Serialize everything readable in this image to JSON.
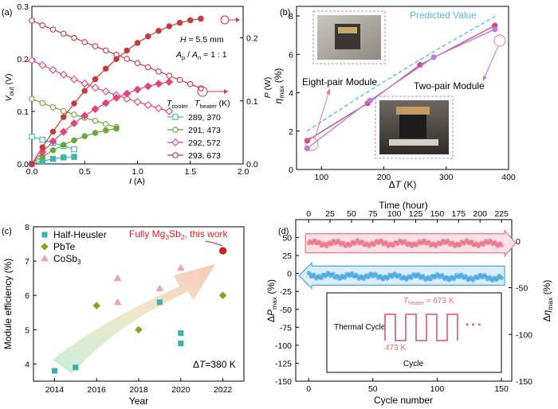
{
  "chart_data": [
    {
      "type": "line",
      "panel": "(a)",
      "xlabel": "I (A)",
      "ylabel": "V_out (V)",
      "y2label": "P (W)",
      "xlim": [
        0,
        2.0
      ],
      "ylim": [
        0,
        0.3
      ],
      "y2lim": [
        0,
        0.25
      ],
      "xticks": [
        "0.0",
        "0.5",
        "1.0",
        "1.5",
        "2.0"
      ],
      "yticks": [
        "0.0",
        "0.1",
        "0.2",
        "0.3"
      ],
      "y2ticks": [
        "0.0",
        "0.1",
        "0.2"
      ],
      "annotations": {
        "h": "H = 5.5 mm",
        "ratio": "A_p / A_n = 1 : 1"
      },
      "legend_title_a": "T_cooler",
      "legend_title_b": "T_heater (K)",
      "series": [
        {
          "name": "289, 370",
          "color": "#3fb5b0",
          "marker": "square",
          "voltage": {
            "x": [
              0.0,
              0.1,
              0.2,
              0.3,
              0.4
            ],
            "y": [
              0.052,
              0.046,
              0.04,
              0.034,
              0.028
            ]
          },
          "power": {
            "x": [
              0.0,
              0.1,
              0.2,
              0.3,
              0.4
            ],
            "y": [
              0.0,
              0.0046,
              0.008,
              0.0102,
              0.0112
            ]
          }
        },
        {
          "name": "291, 473",
          "color": "#6aa834",
          "marker": "circle",
          "voltage": {
            "x": [
              0.0,
              0.1,
              0.2,
              0.3,
              0.4,
              0.5,
              0.6,
              0.7,
              0.8
            ],
            "y": [
              0.124,
              0.116,
              0.108,
              0.101,
              0.094,
              0.088,
              0.082,
              0.076,
              0.07
            ]
          },
          "power": {
            "x": [
              0.0,
              0.1,
              0.2,
              0.3,
              0.4,
              0.5,
              0.6,
              0.7,
              0.8
            ],
            "y": [
              0.0,
              0.0116,
              0.0216,
              0.0303,
              0.0376,
              0.044,
              0.0492,
              0.0532,
              0.056
            ]
          }
        },
        {
          "name": "292, 572",
          "color": "#e0457b",
          "marker": "diamond",
          "voltage": {
            "x": [
              0.0,
              0.1,
              0.2,
              0.3,
              0.4,
              0.5,
              0.6,
              0.7,
              0.8,
              0.9,
              1.0,
              1.1,
              1.2,
              1.3
            ],
            "y": [
              0.197,
              0.188,
              0.179,
              0.17,
              0.161,
              0.153,
              0.145,
              0.138,
              0.131,
              0.124,
              0.118,
              0.112,
              0.106,
              0.1
            ]
          },
          "power": {
            "x": [
              0.0,
              0.1,
              0.2,
              0.3,
              0.4,
              0.5,
              0.6,
              0.7,
              0.8,
              0.9,
              1.0,
              1.1,
              1.2,
              1.3
            ],
            "y": [
              0.0,
              0.0188,
              0.0358,
              0.051,
              0.0644,
              0.0765,
              0.087,
              0.0966,
              0.1048,
              0.1116,
              0.118,
              0.1232,
              0.1272,
              0.13
            ]
          }
        },
        {
          "name": "293, 673",
          "color": "#c73a3a",
          "marker": "circle",
          "voltage": {
            "x": [
              0.0,
              0.1,
              0.2,
              0.3,
              0.4,
              0.5,
              0.6,
              0.7,
              0.8,
              0.9,
              1.0,
              1.1,
              1.2,
              1.3,
              1.4,
              1.5,
              1.6
            ],
            "y": [
              0.273,
              0.264,
              0.256,
              0.248,
              0.24,
              0.232,
              0.224,
              0.216,
              0.208,
              0.2,
              0.192,
              0.184,
              0.176,
              0.168,
              0.16,
              0.152,
              0.144
            ]
          },
          "power": {
            "x": [
              0.0,
              0.1,
              0.2,
              0.3,
              0.4,
              0.5,
              0.6,
              0.7,
              0.8,
              0.9,
              1.0,
              1.1,
              1.2,
              1.3,
              1.4,
              1.5,
              1.6
            ],
            "y": [
              0.0,
              0.0264,
              0.0512,
              0.0744,
              0.096,
              0.116,
              0.1344,
              0.1512,
              0.1664,
              0.18,
              0.192,
              0.2024,
              0.2112,
              0.2184,
              0.224,
              0.228,
              0.2304
            ]
          }
        }
      ]
    },
    {
      "type": "scatter",
      "panel": "(b)",
      "xlabel": "ΔT (K)",
      "ylabel": "η_max (%)",
      "xlim": [
        60,
        400
      ],
      "ylim": [
        0,
        8.5
      ],
      "xticks": [
        100,
        200,
        300,
        400
      ],
      "yticks": [
        0,
        2,
        4,
        6,
        8
      ],
      "predicted_label": "Predicted Value",
      "eight_label": "Eight-pair Module",
      "two_label": "Two-pair Module",
      "predicted": {
        "x": [
          77,
          380
        ],
        "y": [
          2.0,
          8.0
        ]
      },
      "series": [
        {
          "name": "Eight-pair Module",
          "color": "#d6457a",
          "x": [
            77,
            174,
            258,
            378
          ],
          "y": [
            1.5,
            3.45,
            5.45,
            7.5
          ]
        },
        {
          "name": "Two-pair Module",
          "color": "#b57fe0",
          "x": [
            77,
            178,
            280,
            378
          ],
          "y": [
            1.1,
            3.6,
            5.85,
            7.3
          ]
        }
      ]
    },
    {
      "type": "scatter",
      "panel": "(c)",
      "xlabel": "Year",
      "ylabel": "Module efficiency (%)",
      "xlim": [
        2013,
        2023
      ],
      "ylim": [
        3.5,
        8
      ],
      "xticks": [
        2014,
        2016,
        2018,
        2020,
        2022
      ],
      "yticks": [
        4,
        5,
        6,
        7,
        8
      ],
      "highlight_label": "Fully Mg3Sb2, this work",
      "dt_label": "ΔT=380 K",
      "series": [
        {
          "name": "Half-Heusler",
          "color": "#3bb3ac",
          "marker": "square",
          "x": [
            2014,
            2015,
            2019,
            2020,
            2020
          ],
          "y": [
            3.8,
            3.9,
            5.8,
            4.9,
            4.6
          ]
        },
        {
          "name": "PbTe",
          "color": "#8da320",
          "marker": "diamond",
          "x": [
            2016,
            2018,
            2022
          ],
          "y": [
            5.7,
            5.0,
            6.0
          ]
        },
        {
          "name": "CoSb3",
          "color": "#f2a3b3",
          "marker": "triangle",
          "x": [
            2017,
            2017,
            2019,
            2020
          ],
          "y": [
            6.5,
            5.8,
            6.2,
            6.8
          ]
        },
        {
          "name": "Fully Mg3Sb2, this work",
          "color": "#e02020",
          "marker": "circle",
          "x": [
            2022
          ],
          "y": [
            7.3
          ]
        }
      ]
    },
    {
      "type": "line",
      "panel": "(d)",
      "xlabel": "Cycle number",
      "ylabel": "ΔP_max (%)",
      "top_label": "Time (hour)",
      "right_label": "Δη_max (%)",
      "xlim": [
        -10,
        158
      ],
      "ylim": [
        -150,
        75
      ],
      "xticks": [
        0,
        50,
        100,
        150
      ],
      "yticks": [
        -150,
        -125,
        -100,
        -75,
        -50,
        -25,
        0,
        25,
        50
      ],
      "top_ticks": [
        0,
        25,
        50,
        75,
        100,
        125,
        150,
        175,
        200,
        225
      ],
      "right_ticks": [
        0,
        -50,
        -100,
        -150
      ],
      "inset": {
        "t_high": "T_heater = 673 K",
        "t_low": "473 K",
        "left": "Thermal Cycle",
        "bottom": "Cycle",
        "dots": "• • •"
      },
      "series": [
        {
          "name": "ΔP_max",
          "color": "#e8768c",
          "mean": 42,
          "x": [
            0,
            150
          ]
        },
        {
          "name": "Δη_max",
          "color": "#4aa8e0",
          "mean": -3,
          "x": [
            0,
            150
          ]
        }
      ]
    }
  ]
}
